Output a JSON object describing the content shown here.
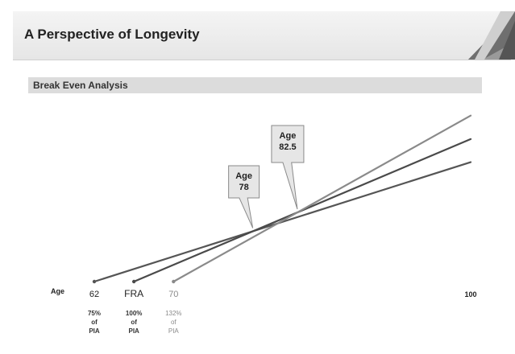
{
  "slide": {
    "title": "A Perspective of Longevity",
    "section_title": "Break Even Analysis"
  },
  "chart_data": {
    "type": "line",
    "x_axis_label": "Age",
    "xlim": [
      62,
      100
    ],
    "ticks": [
      {
        "label": "62",
        "x": 62,
        "sub": [
          "75%",
          "of",
          "PIA"
        ]
      },
      {
        "label": "FRA",
        "x": 66,
        "sub": [
          "100%",
          "of",
          "PIA"
        ]
      },
      {
        "label": "70",
        "x": 70,
        "sub": [
          "132%",
          "of",
          "PIA"
        ]
      },
      {
        "label": "100",
        "x": 100,
        "sub": []
      }
    ],
    "series": [
      {
        "start_age": 62,
        "rate": 75,
        "color": "#555555"
      },
      {
        "start_age": 66,
        "rate": 100,
        "color": "#4a4a4a"
      },
      {
        "start_age": 70,
        "rate": 132,
        "color": "#8a8a8a"
      }
    ],
    "annotations": [
      {
        "line1": "Age",
        "line2": "78",
        "age": 78
      },
      {
        "line1": "Age",
        "line2": "82.5",
        "age": 82.5
      }
    ]
  }
}
